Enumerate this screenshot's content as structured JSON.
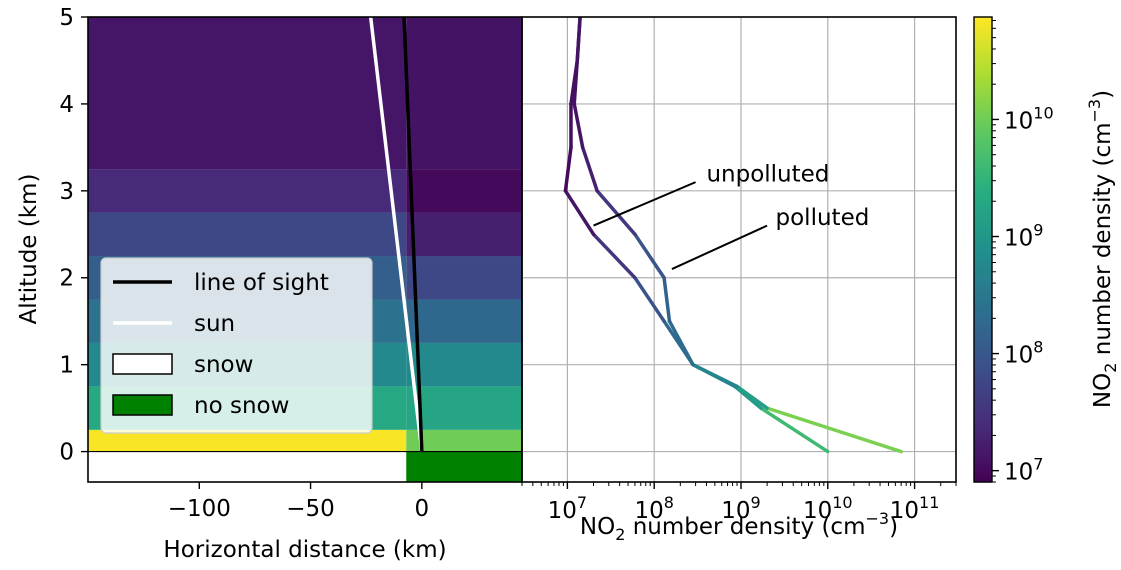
{
  "chart_data": [
    {
      "type": "heatmap",
      "xlabel": "Horizontal distance (km)",
      "ylabel": "Altitude (km)",
      "xlim": [
        -150,
        45
      ],
      "ylim": [
        -0.35,
        5
      ],
      "xticks": [
        -100,
        -50,
        0
      ],
      "xtick_labels": [
        "−100",
        "−50",
        "0"
      ],
      "yticks": [
        0,
        1,
        2,
        3,
        4,
        5
      ],
      "ytick_labels": [
        "0",
        "1",
        "2",
        "3",
        "4",
        "5"
      ],
      "grid": false,
      "legend_position": "lower-left",
      "snow_boundary_x": -7,
      "surface_strip": {
        "y_range": [
          -0.35,
          0
        ],
        "snow_x": [
          -150,
          -7
        ],
        "no_snow_x": [
          -7,
          45
        ]
      },
      "layers_snow_side": [
        {
          "z": [
            0,
            0.25
          ],
          "value": 70000000000.0
        },
        {
          "z": [
            0.25,
            0.75
          ],
          "value": 2000000000.0
        },
        {
          "z": [
            0.75,
            1.25
          ],
          "value": 600000000.0
        },
        {
          "z": [
            1.25,
            1.75
          ],
          "value": 250000000.0
        },
        {
          "z": [
            1.75,
            2.25
          ],
          "value": 130000000.0
        },
        {
          "z": [
            2.25,
            2.75
          ],
          "value": 60000000.0
        },
        {
          "z": [
            2.75,
            3.25
          ],
          "value": 24000000.0
        },
        {
          "z": [
            3.25,
            5
          ],
          "value": 14000000.0
        }
      ],
      "layers_nosnow_side": [
        {
          "z": [
            0,
            0.25
          ],
          "value": 10000000000.0
        },
        {
          "z": [
            0.25,
            0.75
          ],
          "value": 1800000000.0
        },
        {
          "z": [
            0.75,
            1.25
          ],
          "value": 600000000.0
        },
        {
          "z": [
            1.25,
            1.75
          ],
          "value": 180000000.0
        },
        {
          "z": [
            1.75,
            2.25
          ],
          "value": 60000000.0
        },
        {
          "z": [
            2.25,
            2.75
          ],
          "value": 18000000.0
        },
        {
          "z": [
            2.75,
            3.25
          ],
          "value": 10000000.0
        },
        {
          "z": [
            3.25,
            5
          ],
          "value": 13000000.0
        }
      ],
      "lines": [
        {
          "name": "line of sight",
          "color": "#000000",
          "x": [
            0,
            -8
          ],
          "y": [
            0,
            5
          ]
        },
        {
          "name": "sun",
          "color": "#ffffff",
          "x": [
            0,
            -23
          ],
          "y": [
            0,
            5
          ]
        }
      ],
      "legend": [
        {
          "label": "line of sight",
          "kind": "line",
          "color": "#000000"
        },
        {
          "label": "sun",
          "kind": "line",
          "color": "#ffffff"
        },
        {
          "label": "snow",
          "kind": "patch",
          "color": "#ffffff"
        },
        {
          "label": "no snow",
          "kind": "patch",
          "color": "#008000"
        }
      ]
    },
    {
      "type": "line",
      "xlabel": "NO₂ number density (cm⁻³)",
      "xscale": "log",
      "xlim": [
        3000000.0,
        300000000000.0
      ],
      "ylim": [
        -0.35,
        5
      ],
      "xtick_exponents": [
        7,
        8,
        9,
        10,
        11
      ],
      "grid": true,
      "colored_by": "NO2 number density (viridis, log scale)",
      "series": [
        {
          "label_key": "unpolluted",
          "x": [
            10000000000.0,
            1700000000.0,
            850000000.0,
            280000000.0,
            130000000.0,
            60000000.0,
            20000000.0,
            9500000.0,
            11000000.0,
            11000000.0,
            13000000.0,
            14000000.0
          ],
          "y": [
            0,
            0.5,
            0.75,
            1,
            1.5,
            2,
            2.5,
            3,
            3.5,
            4,
            4.5,
            5
          ]
        },
        {
          "label_key": "polluted",
          "x": [
            70000000000.0,
            2000000000.0,
            900000000.0,
            280000000.0,
            150000000.0,
            130000000.0,
            60000000.0,
            22000000.0,
            15000000.0,
            12000000.0,
            13000000.0,
            14000000.0
          ],
          "y": [
            0,
            0.5,
            0.75,
            1,
            1.5,
            2,
            2.5,
            3,
            3.5,
            4,
            4.5,
            5
          ]
        }
      ],
      "annotations": [
        {
          "text": "unpolluted",
          "text_at": [
            400000000.0,
            3.2
          ],
          "line_from": [
            300000000.0,
            3.1
          ],
          "line_to": [
            20000000.0,
            2.6
          ]
        },
        {
          "text": "polluted",
          "text_at": [
            2500000000.0,
            2.7
          ],
          "line_from": [
            2000000000.0,
            2.6
          ],
          "line_to": [
            160000000.0,
            2.1
          ]
        }
      ]
    },
    {
      "type": "colorbar",
      "label": "NO₂ number density (cm⁻³)",
      "scale": "log",
      "range": [
        8000000.0,
        75000000000.0
      ],
      "colormap": "viridis",
      "tick_exponents": [
        7,
        8,
        9,
        10
      ]
    }
  ],
  "ui": {
    "legend_labels": [
      "line of sight",
      "sun",
      "snow",
      "no snow"
    ],
    "annotation_unpolluted": "unpolluted",
    "annotation_polluted": "polluted",
    "heat_xlabel": "Horizontal distance (km)",
    "heat_ylabel": "Altitude (km)",
    "line_xlabel_pre": "NO",
    "line_xlabel_sub": "2",
    "line_xlabel_mid": " number density (cm",
    "line_xlabel_sup": "−3",
    "line_xlabel_post": ")",
    "cbar_label_pre": "NO",
    "cbar_label_sub": "2",
    "cbar_label_mid": " number density (cm",
    "cbar_label_sup": "−3",
    "cbar_label_post": ")",
    "tick_base": "10"
  }
}
